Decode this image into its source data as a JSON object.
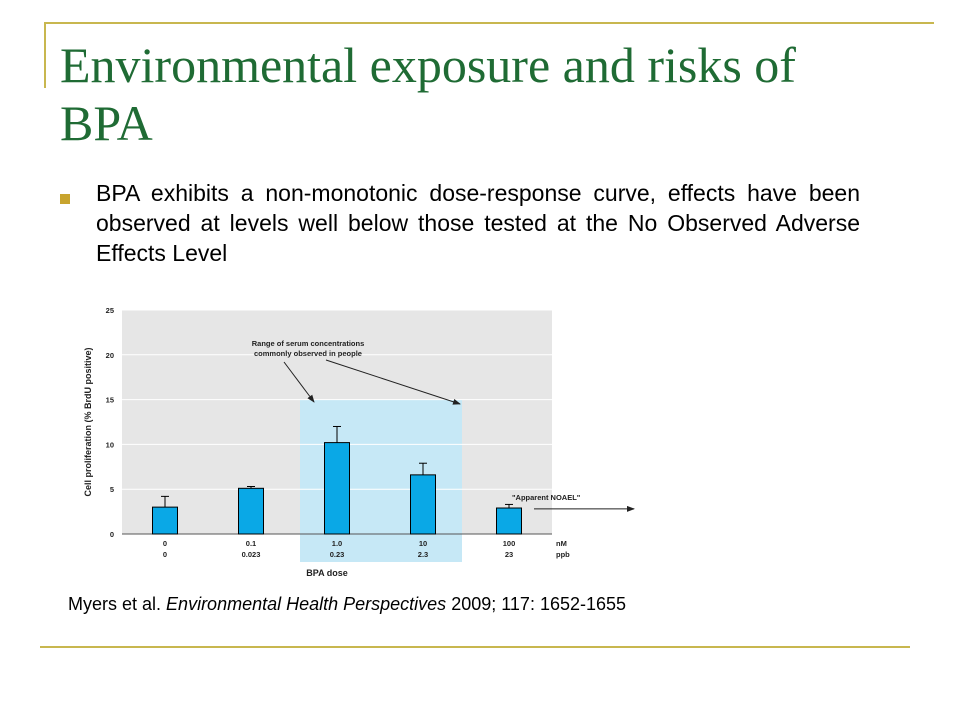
{
  "slide": {
    "title": "Environmental exposure and risks of BPA",
    "bullet": "BPA exhibits a non-monotonic dose-response curve, effects have been observed at levels well below those tested at the No Observed Adverse Effects Level",
    "citation": {
      "authors": "Myers et al.",
      "journal": "Environmental Health Perspectives",
      "details": "2009; 117: 1652-1655"
    }
  },
  "colors": {
    "title": "#1f6b34",
    "accent_rule": "#c8b74f",
    "bar_fill": "#0aa8e6",
    "plot_bg": "#e6e6e6",
    "highlight": "#c6e8f6"
  },
  "chart_data": {
    "type": "bar",
    "categories": [
      "0",
      "0.1",
      "1.0",
      "10",
      "100"
    ],
    "categories_ppb": [
      "0",
      "0.023",
      "0.23",
      "2.3",
      "23"
    ],
    "unit_nM": "nM",
    "unit_ppb": "ppb",
    "values": [
      3.0,
      5.1,
      10.2,
      6.6,
      2.9
    ],
    "error_upper": [
      4.2,
      5.3,
      12.0,
      7.9,
      3.3
    ],
    "ylabel": "Cell proliferation (% BrdU positive)",
    "xlabel": "BPA dose",
    "ylim": [
      0,
      25
    ],
    "yticks": [
      0,
      5,
      10,
      15,
      20,
      25
    ],
    "grid": true,
    "highlight_categories": [
      "1.0",
      "10"
    ],
    "annotations": {
      "range": "Range of serum concentrations commonly observed in people",
      "noael": "\"Apparent NOAEL\""
    }
  }
}
